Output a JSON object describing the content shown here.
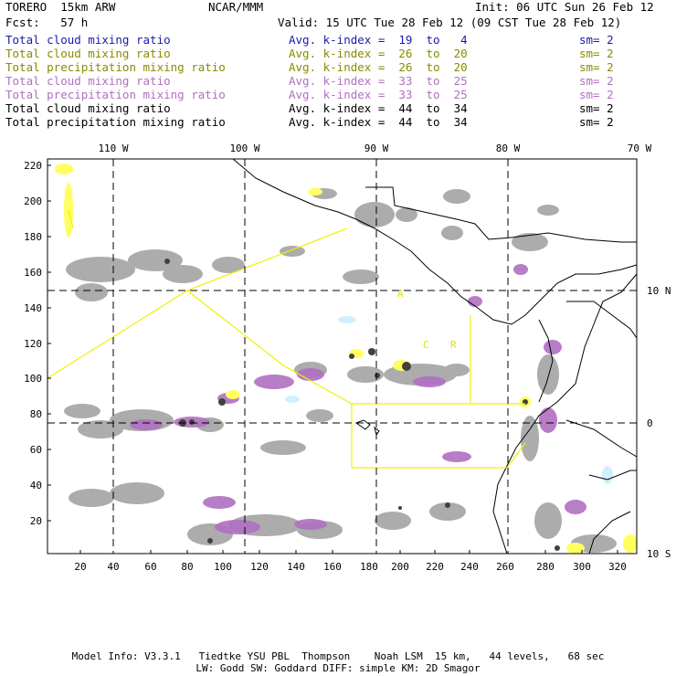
{
  "header": {
    "model": "TORERO  15km ARW",
    "org": "NCAR/MMM",
    "init": "Init: 06 UTC Sun 26 Feb 12",
    "fcst": "Fcst:   57 h",
    "valid": "Valid: 15 UTC Tue 28 Feb 12 (09 CST Tue 28 Feb 12)"
  },
  "legend": [
    {
      "field": "Total cloud mixing ratio",
      "index": "Avg. k-index =  19  to   4",
      "sm": "sm= 2",
      "color": "#1a1aa8"
    },
    {
      "field": "Total cloud mixing ratio",
      "index": "Avg. k-index =  26  to  20",
      "sm": "sm= 2",
      "color": "#8a8a00"
    },
    {
      "field": "Total precipitation mixing ratio",
      "index": "Avg. k-index =  26  to  20",
      "sm": "sm= 2",
      "color": "#8a8a00"
    },
    {
      "field": "Total cloud mixing ratio",
      "index": "Avg. k-index =  33  to  25",
      "sm": "sm= 2",
      "color": "#b070c0"
    },
    {
      "field": "Total precipitation mixing ratio",
      "index": "Avg. k-index =  33  to  25",
      "sm": "sm= 2",
      "color": "#b070c0"
    },
    {
      "field": "Total cloud mixing ratio",
      "index": "Avg. k-index =  44  to  34",
      "sm": "sm= 2",
      "color": "#000000"
    },
    {
      "field": "Total precipitation mixing ratio",
      "index": "Avg. k-index =  44  to  34",
      "sm": "sm= 2",
      "color": "#000000"
    }
  ],
  "map": {
    "lon_labels": [
      "110 W",
      "100 W",
      "90 W",
      "80 W",
      "70 W"
    ],
    "lat_labels": [
      "10 N",
      "0",
      "10 S"
    ],
    "x_ticks": [
      "20",
      "40",
      "60",
      "80",
      "100",
      "120",
      "140",
      "160",
      "180",
      "200",
      "220",
      "240",
      "260",
      "280",
      "300",
      "320"
    ],
    "y_ticks": [
      "220",
      "200",
      "180",
      "160",
      "140",
      "120",
      "100",
      "80",
      "60",
      "40",
      "20"
    ],
    "box_labels": [
      "A",
      "C",
      "R"
    ],
    "colors": {
      "gray": "#a8a8a8",
      "dark": "#404040",
      "purple": "#b070c0",
      "yellow": "#ffff60",
      "lightblue": "#d0f0ff",
      "coast": "#000000",
      "box": "#f0f000"
    }
  },
  "footer": {
    "line1": "Model Info: V3.3.1   Tiedtke YSU PBL  Thompson    Noah LSM  15 km,   44 levels,   68 sec",
    "line2": "LW: Godd SW: Goddard DIFF: simple KM: 2D Smagor"
  }
}
